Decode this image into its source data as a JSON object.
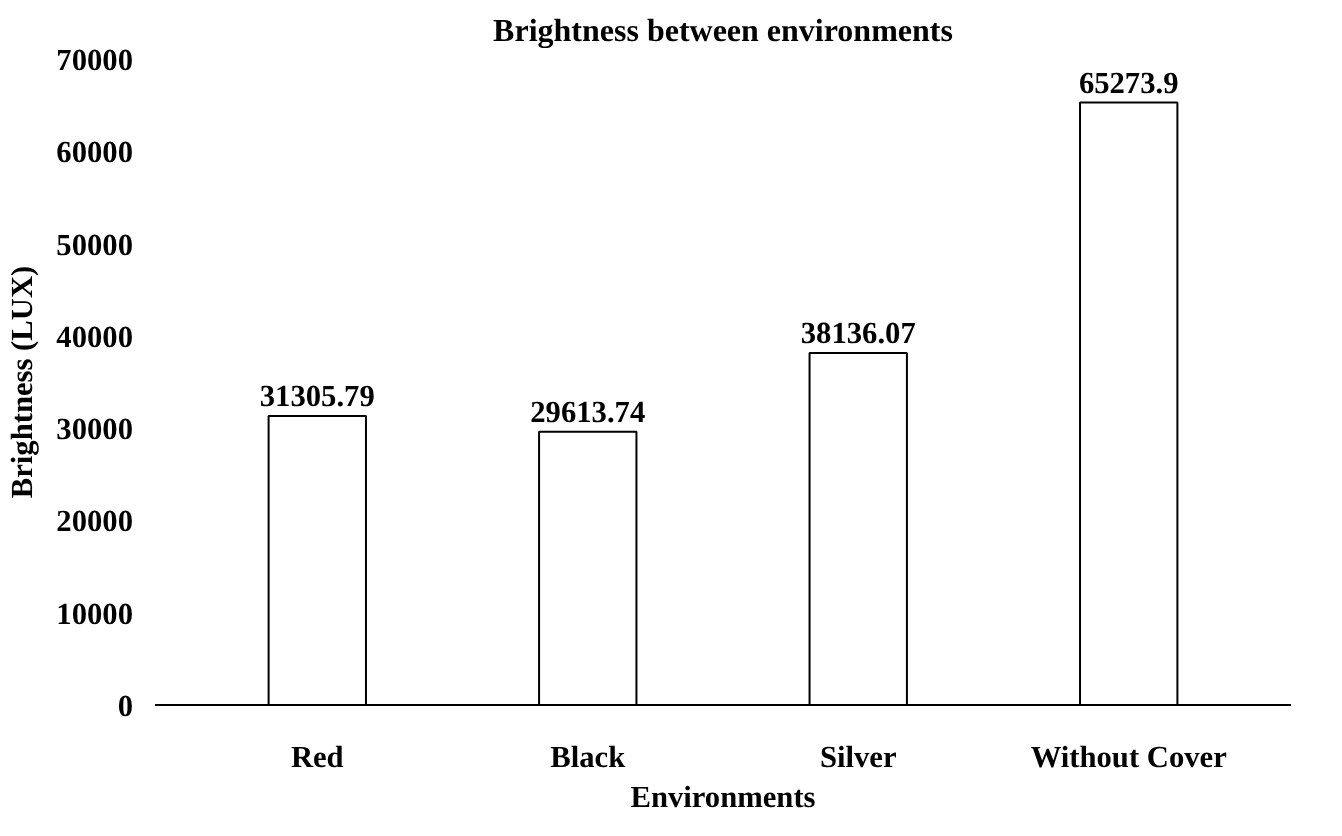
{
  "chart_data": {
    "type": "bar",
    "title": "Brightness between environments",
    "xlabel": "Environments",
    "ylabel": "Brightness (LUX)",
    "categories": [
      "Red",
      "Black",
      "Silver",
      "Without Cover"
    ],
    "values": [
      31305.79,
      29613.74,
      38136.07,
      65273.9
    ],
    "color": "#ffffff",
    "ylim": [
      0,
      70000
    ],
    "yticks": [
      0,
      10000,
      20000,
      30000,
      40000,
      50000,
      60000,
      70000
    ],
    "data_labels": true,
    "grid": false
  }
}
